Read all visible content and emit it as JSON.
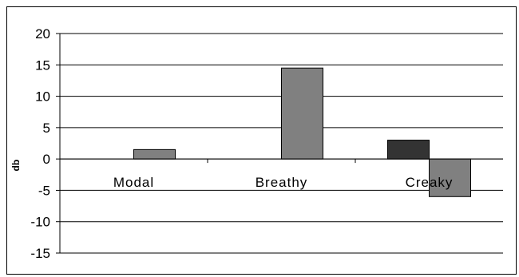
{
  "chart_data": {
    "type": "bar",
    "title": "",
    "xlabel": "",
    "ylabel": "db",
    "ylim": [
      -15,
      20
    ],
    "yticks": [
      20,
      15,
      10,
      5,
      0,
      -5,
      -10,
      -15
    ],
    "grid": true,
    "legend": "none",
    "categories": [
      "Modal",
      "Breathy",
      "Creaky"
    ],
    "series": [
      {
        "color": "#333333",
        "values": [
          0,
          0,
          3
        ]
      },
      {
        "color": "#808080",
        "values": [
          1.5,
          14.5,
          -6
        ]
      }
    ]
  }
}
